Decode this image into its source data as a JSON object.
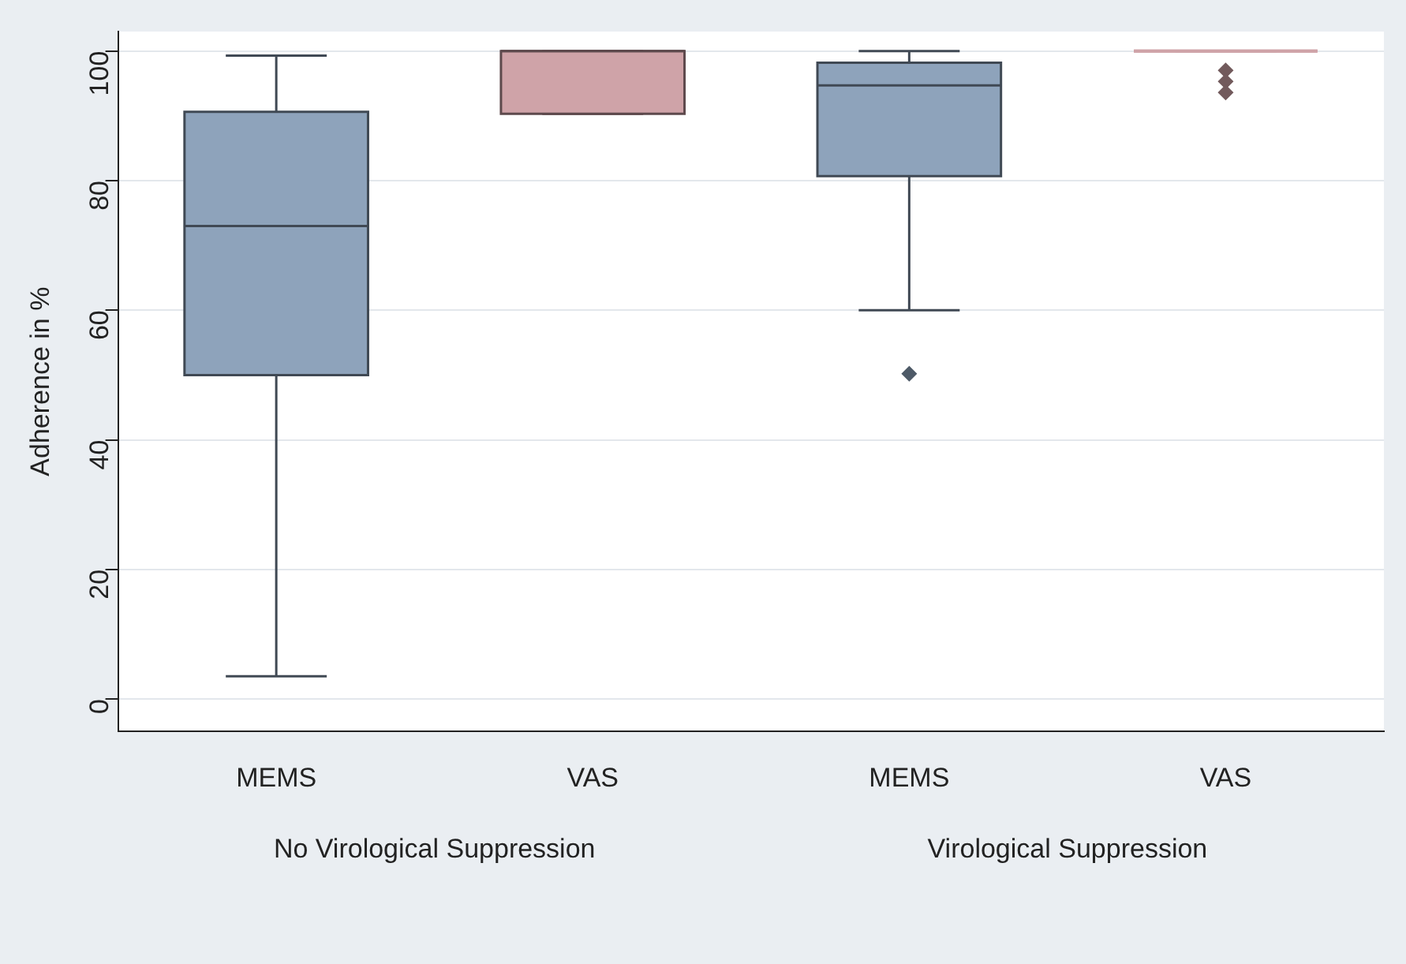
{
  "chart_data": {
    "type": "box",
    "ylabel": "Adherence in %",
    "categories": [
      "MEMS",
      "VAS",
      "MEMS",
      "VAS"
    ],
    "colors": [
      "#8ea3bb",
      "#cfa3a8",
      "#8ea3bb",
      "#cfa3a8"
    ],
    "boxes": [
      {
        "low": 3.5,
        "q1": 50,
        "median": 73,
        "q3": 90.6,
        "high": 99.3
      },
      {
        "low": 90.3,
        "q1": 90.3,
        "median": 100,
        "q3": 100,
        "high": 100
      },
      {
        "low": 60,
        "q1": 80.7,
        "median": 94.7,
        "q3": 98.2,
        "high": 100,
        "outliers": [
          50.2
        ]
      },
      {
        "low": 100,
        "q1": 100,
        "median": 100,
        "q3": 100,
        "high": 100,
        "outliers": [
          97,
          95.3,
          93.6
        ]
      }
    ],
    "ylim": [
      -5,
      103
    ],
    "yticks": [
      0,
      20,
      40,
      60,
      80,
      100
    ],
    "grid": "y",
    "annotations": [
      "No Virological Suppression",
      "Virological Suppression"
    ]
  }
}
